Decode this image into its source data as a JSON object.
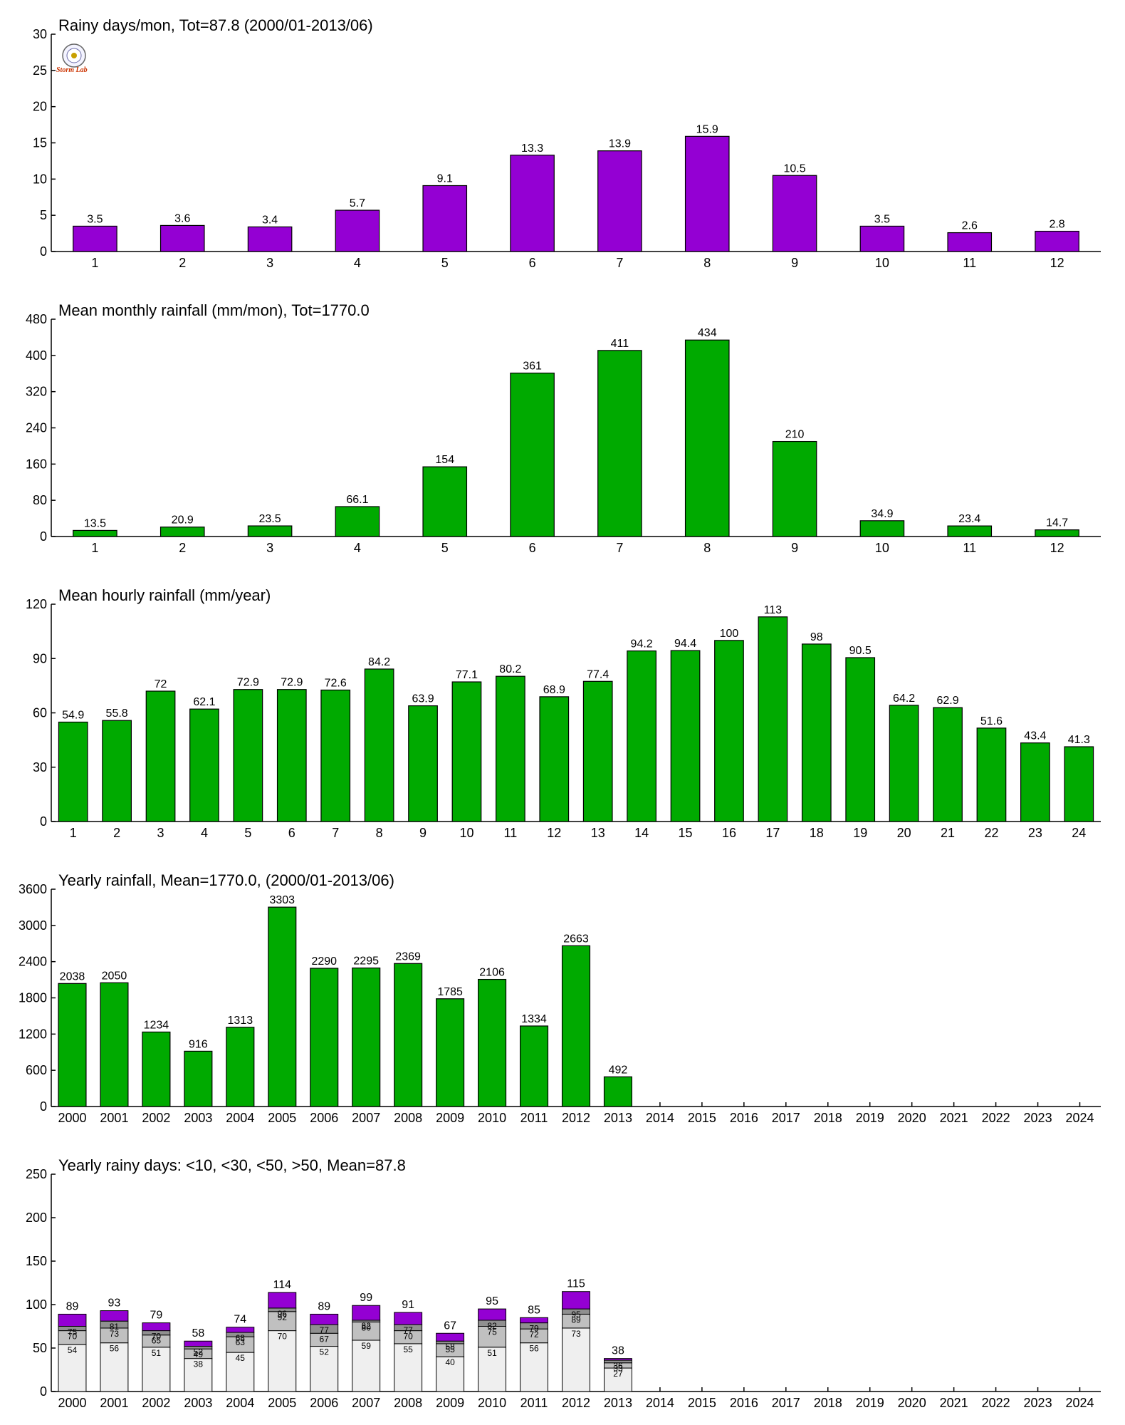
{
  "colors": {
    "purple": "#9400d3",
    "green": "#00aa00",
    "seg_lt10": "#efefef",
    "seg_lt30": "#c0c0c0",
    "seg_lt50": "#909090",
    "seg_gt50": "#9400d3"
  },
  "logo": {
    "icon": "lab-logo-seal",
    "text": "Storm Lab"
  },
  "chart_data": [
    {
      "type": "bar",
      "title": "Rainy days/mon, Tot=87.8 (2000/01-2013/06)",
      "categories": [
        "1",
        "2",
        "3",
        "4",
        "5",
        "6",
        "7",
        "8",
        "9",
        "10",
        "11",
        "12"
      ],
      "values": [
        3.5,
        3.6,
        3.4,
        5.7,
        9.1,
        13.3,
        13.9,
        15.9,
        10.5,
        3.5,
        2.6,
        2.8
      ],
      "value_labels": [
        "3.5",
        "3.6",
        "3.4",
        "5.7",
        "9.1",
        "13.3",
        "13.9",
        "15.9",
        "10.5",
        "3.5",
        "2.6",
        "2.8"
      ],
      "ylim": [
        0,
        30
      ],
      "yticks": [
        "0",
        "5",
        "10",
        "15",
        "20",
        "25",
        "30"
      ],
      "color": "#9400d3"
    },
    {
      "type": "bar",
      "title": "Mean monthly rainfall (mm/mon), Tot=1770.0",
      "categories": [
        "1",
        "2",
        "3",
        "4",
        "5",
        "6",
        "7",
        "8",
        "9",
        "10",
        "11",
        "12"
      ],
      "values": [
        13.5,
        20.9,
        23.5,
        66.1,
        154,
        361,
        411,
        434,
        210,
        34.9,
        23.4,
        14.7
      ],
      "value_labels": [
        "13.5",
        "20.9",
        "23.5",
        "66.1",
        "154",
        "361",
        "411",
        "434",
        "210",
        "34.9",
        "23.4",
        "14.7"
      ],
      "ylim": [
        0,
        480
      ],
      "yticks": [
        "0",
        "80",
        "160",
        "240",
        "320",
        "400",
        "480"
      ],
      "color": "#00aa00"
    },
    {
      "type": "bar",
      "title": "Mean hourly rainfall (mm/year)",
      "categories": [
        "1",
        "2",
        "3",
        "4",
        "5",
        "6",
        "7",
        "8",
        "9",
        "10",
        "11",
        "12",
        "13",
        "14",
        "15",
        "16",
        "17",
        "18",
        "19",
        "20",
        "21",
        "22",
        "23",
        "24"
      ],
      "values": [
        54.9,
        55.8,
        72,
        62.1,
        72.9,
        72.9,
        72.6,
        84.2,
        63.9,
        77.1,
        80.2,
        68.9,
        77.4,
        94.2,
        94.4,
        100,
        113,
        98,
        90.5,
        64.2,
        62.9,
        51.6,
        43.4,
        41.3
      ],
      "value_labels": [
        "54.9",
        "55.8",
        "72",
        "62.1",
        "72.9",
        "72.9",
        "72.6",
        "84.2",
        "63.9",
        "77.1",
        "80.2",
        "68.9",
        "77.4",
        "94.2",
        "94.4",
        "100",
        "113",
        "98",
        "90.5",
        "64.2",
        "62.9",
        "51.6",
        "43.4",
        "41.3"
      ],
      "ylim": [
        0,
        120
      ],
      "yticks": [
        "0",
        "30",
        "60",
        "90",
        "120"
      ],
      "color": "#00aa00"
    },
    {
      "type": "bar",
      "title": "Yearly rainfall, Mean=1770.0, (2000/01-2013/06)",
      "categories": [
        "2000",
        "2001",
        "2002",
        "2003",
        "2004",
        "2005",
        "2006",
        "2007",
        "2008",
        "2009",
        "2010",
        "2011",
        "2012",
        "2013",
        "2014",
        "2015",
        "2016",
        "2017",
        "2018",
        "2019",
        "2020",
        "2021",
        "2022",
        "2023",
        "2024"
      ],
      "values": [
        2038,
        2050,
        1234,
        916,
        1313,
        3303,
        2290,
        2295,
        2369,
        1785,
        2106,
        1334,
        2663,
        492,
        null,
        null,
        null,
        null,
        null,
        null,
        null,
        null,
        null,
        null,
        null
      ],
      "value_labels": [
        "2038",
        "2050",
        "1234",
        "916",
        "1313",
        "3303",
        "2290",
        "2295",
        "2369",
        "1785",
        "2106",
        "1334",
        "2663",
        "492",
        "",
        "",
        "",
        "",
        "",
        "",
        "",
        "",
        "",
        "",
        ""
      ],
      "ylim": [
        0,
        3600
      ],
      "yticks": [
        "0",
        "600",
        "1200",
        "1800",
        "2400",
        "3000",
        "3600"
      ],
      "color": "#00aa00"
    },
    {
      "type": "bar",
      "stacked": true,
      "title": "Yearly rainy days: <10, <30, <50, >50, Mean=87.8",
      "categories": [
        "2000",
        "2001",
        "2002",
        "2003",
        "2004",
        "2005",
        "2006",
        "2007",
        "2008",
        "2009",
        "2010",
        "2011",
        "2012",
        "2013",
        "2014",
        "2015",
        "2016",
        "2017",
        "2018",
        "2019",
        "2020",
        "2021",
        "2022",
        "2023",
        "2024"
      ],
      "cumulative": [
        [
          54,
          70,
          75,
          89
        ],
        [
          56,
          73,
          81,
          93
        ],
        [
          51,
          65,
          70,
          79
        ],
        [
          38,
          49,
          52,
          58
        ],
        [
          45,
          63,
          68,
          74
        ],
        [
          70,
          92,
          96,
          114
        ],
        [
          52,
          67,
          77,
          89
        ],
        [
          59,
          80,
          82,
          99
        ],
        [
          55,
          70,
          77,
          91
        ],
        [
          40,
          55,
          58,
          67
        ],
        [
          51,
          75,
          82,
          95
        ],
        [
          56,
          72,
          79,
          85
        ],
        [
          73,
          89,
          95,
          115
        ],
        [
          27,
          33,
          36,
          38
        ],
        null,
        null,
        null,
        null,
        null,
        null,
        null,
        null,
        null,
        null,
        null
      ],
      "total_labels": [
        "89",
        "93",
        "79",
        "58",
        "74",
        "114",
        "89",
        "99",
        "91",
        "67",
        "95",
        "85",
        "115",
        "38",
        "",
        "",
        "",
        "",
        "",
        "",
        "",
        "",
        "",
        "",
        ""
      ],
      "segment_labels": [
        [
          "54",
          "70",
          "75"
        ],
        [
          "56",
          "73",
          "81"
        ],
        [
          "51",
          "65",
          "70"
        ],
        [
          "38",
          "49",
          "52"
        ],
        [
          "45",
          "63",
          "68"
        ],
        [
          "70",
          "92",
          "96"
        ],
        [
          "52",
          "67",
          "77"
        ],
        [
          "59",
          "80",
          "82"
        ],
        [
          "55",
          "70",
          "77"
        ],
        [
          "40",
          "55",
          "58"
        ],
        [
          "51",
          "75",
          "82"
        ],
        [
          "56",
          "72",
          "79"
        ],
        [
          "73",
          "89",
          "95"
        ],
        [
          "27",
          "33",
          "36"
        ],
        [],
        [],
        [],
        [],
        [],
        [],
        [],
        [],
        [],
        [],
        []
      ],
      "ylim": [
        0,
        250
      ],
      "yticks": [
        "0",
        "50",
        "100",
        "150",
        "200",
        "250"
      ],
      "series_colors": [
        "#efefef",
        "#c0c0c0",
        "#909090",
        "#9400d3"
      ]
    }
  ]
}
